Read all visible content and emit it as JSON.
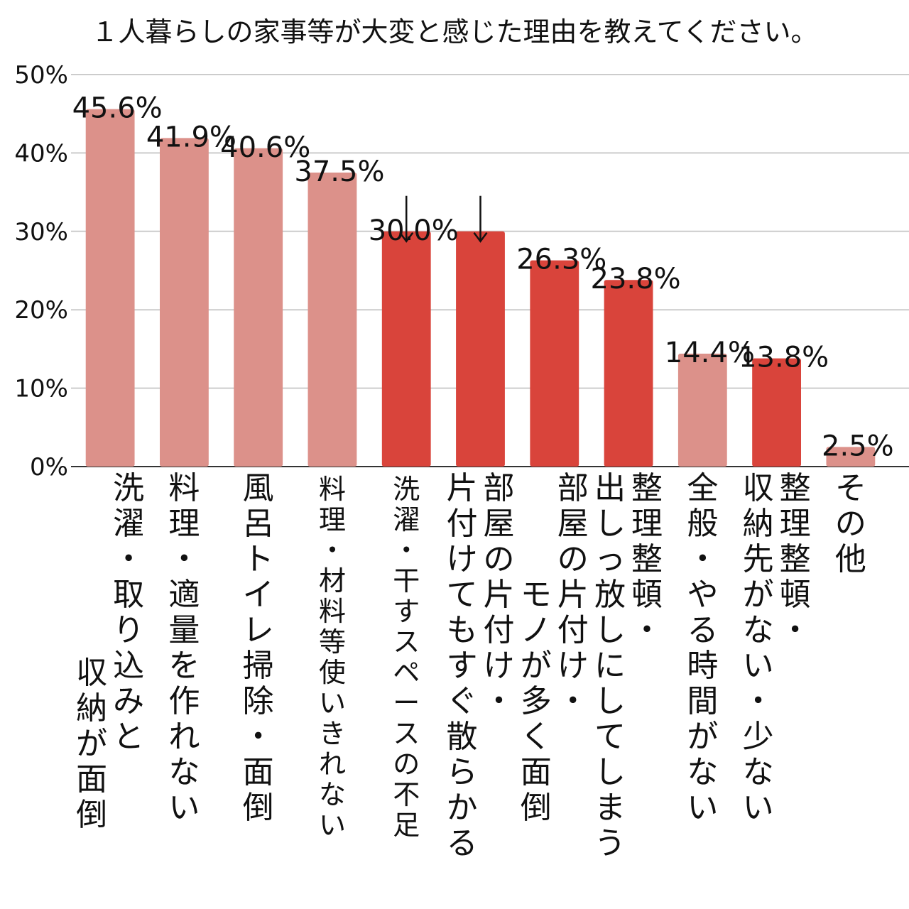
{
  "chart_data": {
    "type": "bar",
    "title": "１人暮らしの家事等が大変と感じた理由を教えてください。",
    "ylim": [
      0,
      50
    ],
    "y_ticks": [
      "0%",
      "10%",
      "20%",
      "30%",
      "40%",
      "50%"
    ],
    "grid": true,
    "categories": [
      [
        "洗濯・取り込みと",
        "収納が面倒"
      ],
      [
        "料理・適量を作れない"
      ],
      [
        "風呂トイレ掃除・面倒"
      ],
      [
        "料理・材料等使いきれない"
      ],
      [
        "洗濯・干すスペースの不足"
      ],
      [
        "部屋の片付け・",
        "片付けてもすぐ散らかる"
      ],
      [
        "部屋の片付け・",
        "モノが多く面倒"
      ],
      [
        "整理整頓・",
        "出しっ放しにしてしまう"
      ],
      [
        "全般・やる時間がない"
      ],
      [
        "整理整頓・",
        "収納先がない・少ない"
      ],
      [
        "その他"
      ]
    ],
    "values": [
      45.6,
      41.9,
      40.6,
      37.5,
      30.0,
      30.0,
      26.3,
      23.8,
      14.4,
      13.8,
      2.5
    ],
    "data_labels": [
      "45.6%",
      "41.9%",
      "40.6%",
      "37.5%",
      "30.0%",
      "",
      "26.3%",
      "23.8%",
      "14.4%",
      "13.8%",
      "2.5%"
    ],
    "highlighted": [
      false,
      false,
      false,
      false,
      true,
      true,
      true,
      true,
      false,
      true,
      false
    ],
    "colors": {
      "normal": "#dc918a",
      "highlight": "#d9443b"
    }
  }
}
